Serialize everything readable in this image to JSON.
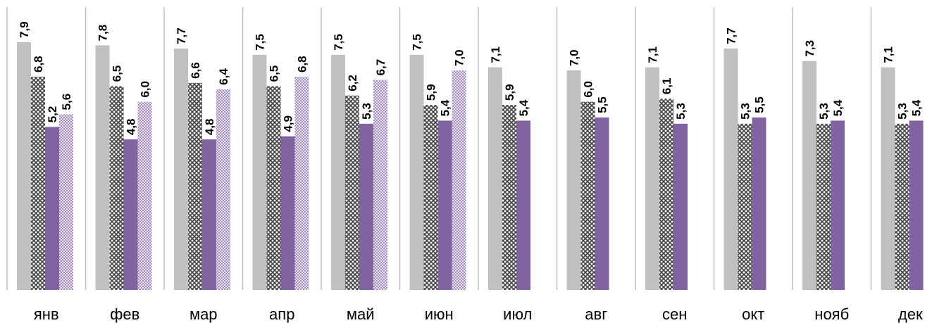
{
  "chart_data": {
    "type": "bar",
    "categories": [
      "янв",
      "фев",
      "мар",
      "апр",
      "май",
      "июн",
      "июл",
      "авг",
      "сен",
      "окт",
      "нояб",
      "дек"
    ],
    "series": [
      {
        "values": [
          7.9,
          7.8,
          7.7,
          7.5,
          7.5,
          7.5,
          7.1,
          7.0,
          7.1,
          7.7,
          7.3,
          7.1
        ],
        "labels": [
          "7,9",
          "7,8",
          "7,7",
          "7,5",
          "7,5",
          "7,5",
          "7,1",
          "7,0",
          "7,1",
          "7,7",
          "7,3",
          "7,1"
        ],
        "color": "#c0c0c0",
        "pattern": "solid"
      },
      {
        "values": [
          6.8,
          6.5,
          6.6,
          6.5,
          6.2,
          5.9,
          5.9,
          6.0,
          6.1,
          5.3,
          5.3,
          5.3
        ],
        "labels": [
          "6,8",
          "6,5",
          "6,6",
          "6,5",
          "6,2",
          "5,9",
          "5,9",
          "6,0",
          "6,1",
          "5,3",
          "5,3",
          "5,3"
        ],
        "color": "#595959",
        "pattern": "cross-hatch"
      },
      {
        "values": [
          5.2,
          4.8,
          4.8,
          4.9,
          5.3,
          5.4,
          5.4,
          5.5,
          5.3,
          5.5,
          5.4,
          5.4
        ],
        "labels": [
          "5,2",
          "4,8",
          "4,8",
          "4,9",
          "5,3",
          "5,4",
          "5,4",
          "5,5",
          "5,3",
          "5,5",
          "5,4",
          "5,4"
        ],
        "color": "#8064a2",
        "pattern": "solid"
      },
      {
        "values": [
          5.6,
          6.0,
          6.4,
          6.8,
          6.7,
          7.0,
          null,
          null,
          null,
          null,
          null,
          null
        ],
        "labels": [
          "5,6",
          "6,0",
          "6,4",
          "6,8",
          "6,7",
          "7,0",
          null,
          null,
          null,
          null,
          null,
          null
        ],
        "color": "#b3a2c7",
        "pattern": "checker"
      }
    ],
    "ylim": [
      0,
      7.9
    ],
    "grid": false,
    "legend": "none",
    "title": "",
    "xlabel": "",
    "ylabel": ""
  }
}
